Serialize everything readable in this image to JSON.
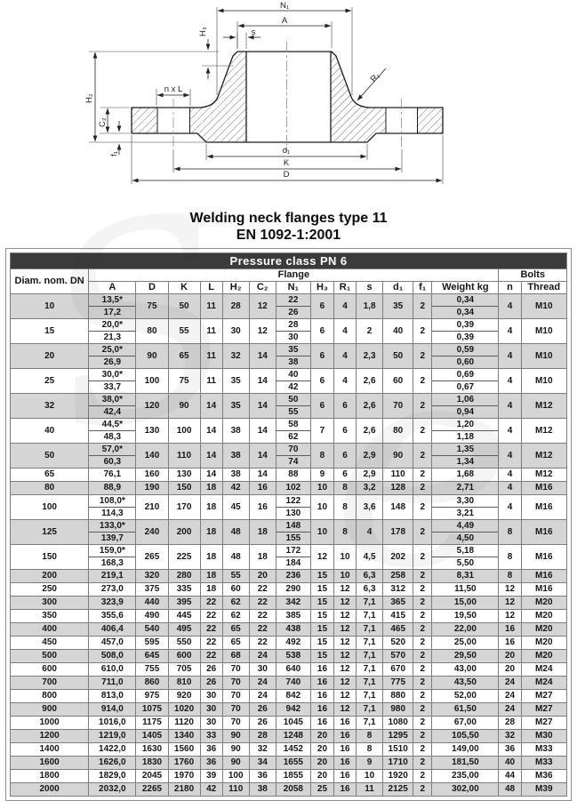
{
  "drawing": {
    "labels": {
      "n1": "N₁",
      "a": "A",
      "h3": "H₃",
      "s": "s",
      "nxl": "n x L",
      "h2": "H₂",
      "c2": "C₂",
      "f1": "f₁",
      "d1": "d₁",
      "k": "K",
      "d": "D",
      "r1": "R₁"
    }
  },
  "title": {
    "line1": "Welding neck flanges type 11",
    "line2": "EN 1092-1:2001"
  },
  "table": {
    "pressure_class": "Pressure class PN 6",
    "group_headers": {
      "dn": "Diam. nom. DN",
      "flange": "Flange",
      "bolts": "Bolts"
    },
    "columns": [
      "A",
      "D",
      "K",
      "L",
      "H₂",
      "C₂",
      "N₁",
      "H₃",
      "R₁",
      "s",
      "d₁",
      "f₁",
      "Weight kg",
      "n",
      "Thread"
    ],
    "rows": [
      {
        "dn": "10",
        "A": [
          "13,5*",
          "17,2"
        ],
        "D": "75",
        "K": "50",
        "L": "11",
        "H2": "28",
        "C2": "12",
        "N1": [
          "22",
          "26"
        ],
        "H3": "6",
        "R1": "4",
        "s": "1,8",
        "d1": "35",
        "f1": "2",
        "weight": [
          "0,34",
          "0,34"
        ],
        "n": "4",
        "thread": "M10"
      },
      {
        "dn": "15",
        "A": [
          "20,0*",
          "21,3"
        ],
        "D": "80",
        "K": "55",
        "L": "11",
        "H2": "30",
        "C2": "12",
        "N1": [
          "28",
          "30"
        ],
        "H3": "6",
        "R1": "4",
        "s": "2",
        "d1": "40",
        "f1": "2",
        "weight": [
          "0,39",
          "0,39"
        ],
        "n": "4",
        "thread": "M10"
      },
      {
        "dn": "20",
        "A": [
          "25,0*",
          "26,9"
        ],
        "D": "90",
        "K": "65",
        "L": "11",
        "H2": "32",
        "C2": "14",
        "N1": [
          "35",
          "38"
        ],
        "H3": "6",
        "R1": "4",
        "s": "2,3",
        "d1": "50",
        "f1": "2",
        "weight": [
          "0,59",
          "0,60"
        ],
        "n": "4",
        "thread": "M10"
      },
      {
        "dn": "25",
        "A": [
          "30,0*",
          "33,7"
        ],
        "D": "100",
        "K": "75",
        "L": "11",
        "H2": "35",
        "C2": "14",
        "N1": [
          "40",
          "42"
        ],
        "H3": "6",
        "R1": "4",
        "s": "2,6",
        "d1": "60",
        "f1": "2",
        "weight": [
          "0,69",
          "0,67"
        ],
        "n": "4",
        "thread": "M10"
      },
      {
        "dn": "32",
        "A": [
          "38,0*",
          "42,4"
        ],
        "D": "120",
        "K": "90",
        "L": "14",
        "H2": "35",
        "C2": "14",
        "N1": [
          "50",
          "55"
        ],
        "H3": "6",
        "R1": "6",
        "s": "2,6",
        "d1": "70",
        "f1": "2",
        "weight": [
          "1,06",
          "0,94"
        ],
        "n": "4",
        "thread": "M12"
      },
      {
        "dn": "40",
        "A": [
          "44,5*",
          "48,3"
        ],
        "D": "130",
        "K": "100",
        "L": "14",
        "H2": "38",
        "C2": "14",
        "N1": [
          "58",
          "62"
        ],
        "H3": "7",
        "R1": "6",
        "s": "2,6",
        "d1": "80",
        "f1": "2",
        "weight": [
          "1,20",
          "1,18"
        ],
        "n": "4",
        "thread": "M12"
      },
      {
        "dn": "50",
        "A": [
          "57,0*",
          "60,3"
        ],
        "D": "140",
        "K": "110",
        "L": "14",
        "H2": "38",
        "C2": "14",
        "N1": [
          "70",
          "74"
        ],
        "H3": "8",
        "R1": "6",
        "s": "2,9",
        "d1": "90",
        "f1": "2",
        "weight": [
          "1,35",
          "1,34"
        ],
        "n": "4",
        "thread": "M12"
      },
      {
        "dn": "65",
        "A": "76,1",
        "D": "160",
        "K": "130",
        "L": "14",
        "H2": "38",
        "C2": "14",
        "N1": "88",
        "H3": "9",
        "R1": "6",
        "s": "2,9",
        "d1": "110",
        "f1": "2",
        "weight": "1,68",
        "n": "4",
        "thread": "M12"
      },
      {
        "dn": "80",
        "A": "88,9",
        "D": "190",
        "K": "150",
        "L": "18",
        "H2": "42",
        "C2": "16",
        "N1": "102",
        "H3": "10",
        "R1": "8",
        "s": "3,2",
        "d1": "128",
        "f1": "2",
        "weight": "2,71",
        "n": "4",
        "thread": "M16"
      },
      {
        "dn": "100",
        "A": [
          "108,0*",
          "114,3"
        ],
        "D": "210",
        "K": "170",
        "L": "18",
        "H2": "45",
        "C2": "16",
        "N1": [
          "122",
          "130"
        ],
        "H3": "10",
        "R1": "8",
        "s": "3,6",
        "d1": "148",
        "f1": "2",
        "weight": [
          "3,30",
          "3,21"
        ],
        "n": "4",
        "thread": "M16"
      },
      {
        "dn": "125",
        "A": [
          "133,0*",
          "139,7"
        ],
        "D": "240",
        "K": "200",
        "L": "18",
        "H2": "48",
        "C2": "18",
        "N1": [
          "148",
          "155"
        ],
        "H3": "10",
        "R1": "8",
        "s": "4",
        "d1": "178",
        "f1": "2",
        "weight": [
          "4,49",
          "4,50"
        ],
        "n": "8",
        "thread": "M16"
      },
      {
        "dn": "150",
        "A": [
          "159,0*",
          "168,3"
        ],
        "D": "265",
        "K": "225",
        "L": "18",
        "H2": "48",
        "C2": "18",
        "N1": [
          "172",
          "184"
        ],
        "H3": "12",
        "R1": "10",
        "s": "4,5",
        "d1": "202",
        "f1": "2",
        "weight": [
          "5,18",
          "5,50"
        ],
        "n": "8",
        "thread": "M16"
      },
      {
        "dn": "200",
        "A": "219,1",
        "D": "320",
        "K": "280",
        "L": "18",
        "H2": "55",
        "C2": "20",
        "N1": "236",
        "H3": "15",
        "R1": "10",
        "s": "6,3",
        "d1": "258",
        "f1": "2",
        "weight": "8,31",
        "n": "8",
        "thread": "M16"
      },
      {
        "dn": "250",
        "A": "273,0",
        "D": "375",
        "K": "335",
        "L": "18",
        "H2": "60",
        "C2": "22",
        "N1": "290",
        "H3": "15",
        "R1": "12",
        "s": "6,3",
        "d1": "312",
        "f1": "2",
        "weight": "11,50",
        "n": "12",
        "thread": "M16"
      },
      {
        "dn": "300",
        "A": "323,9",
        "D": "440",
        "K": "395",
        "L": "22",
        "H2": "62",
        "C2": "22",
        "N1": "342",
        "H3": "15",
        "R1": "12",
        "s": "7,1",
        "d1": "365",
        "f1": "2",
        "weight": "15,00",
        "n": "12",
        "thread": "M20"
      },
      {
        "dn": "350",
        "A": "355,6",
        "D": "490",
        "K": "445",
        "L": "22",
        "H2": "62",
        "C2": "22",
        "N1": "385",
        "H3": "15",
        "R1": "12",
        "s": "7,1",
        "d1": "415",
        "f1": "2",
        "weight": "19,50",
        "n": "12",
        "thread": "M20"
      },
      {
        "dn": "400",
        "A": "406,4",
        "D": "540",
        "K": "495",
        "L": "22",
        "H2": "65",
        "C2": "22",
        "N1": "438",
        "H3": "15",
        "R1": "12",
        "s": "7,1",
        "d1": "465",
        "f1": "2",
        "weight": "22,00",
        "n": "16",
        "thread": "M20"
      },
      {
        "dn": "450",
        "A": "457,0",
        "D": "595",
        "K": "550",
        "L": "22",
        "H2": "65",
        "C2": "22",
        "N1": "492",
        "H3": "15",
        "R1": "12",
        "s": "7,1",
        "d1": "520",
        "f1": "2",
        "weight": "25,00",
        "n": "16",
        "thread": "M20"
      },
      {
        "dn": "500",
        "A": "508,0",
        "D": "645",
        "K": "600",
        "L": "22",
        "H2": "68",
        "C2": "24",
        "N1": "538",
        "H3": "15",
        "R1": "12",
        "s": "7,1",
        "d1": "570",
        "f1": "2",
        "weight": "29,50",
        "n": "20",
        "thread": "M20"
      },
      {
        "dn": "600",
        "A": "610,0",
        "D": "755",
        "K": "705",
        "L": "26",
        "H2": "70",
        "C2": "30",
        "N1": "640",
        "H3": "16",
        "R1": "12",
        "s": "7,1",
        "d1": "670",
        "f1": "2",
        "weight": "43,00",
        "n": "20",
        "thread": "M24"
      },
      {
        "dn": "700",
        "A": "711,0",
        "D": "860",
        "K": "810",
        "L": "26",
        "H2": "70",
        "C2": "24",
        "N1": "740",
        "H3": "16",
        "R1": "12",
        "s": "7,1",
        "d1": "775",
        "f1": "2",
        "weight": "43,50",
        "n": "24",
        "thread": "M24"
      },
      {
        "dn": "800",
        "A": "813,0",
        "D": "975",
        "K": "920",
        "L": "30",
        "H2": "70",
        "C2": "24",
        "N1": "842",
        "H3": "16",
        "R1": "12",
        "s": "7,1",
        "d1": "880",
        "f1": "2",
        "weight": "52,00",
        "n": "24",
        "thread": "M27"
      },
      {
        "dn": "900",
        "A": "914,0",
        "D": "1075",
        "K": "1020",
        "L": "30",
        "H2": "70",
        "C2": "26",
        "N1": "942",
        "H3": "16",
        "R1": "12",
        "s": "7,1",
        "d1": "980",
        "f1": "2",
        "weight": "61,50",
        "n": "24",
        "thread": "M27"
      },
      {
        "dn": "1000",
        "A": "1016,0",
        "D": "1175",
        "K": "1120",
        "L": "30",
        "H2": "70",
        "C2": "26",
        "N1": "1045",
        "H3": "16",
        "R1": "16",
        "s": "7,1",
        "d1": "1080",
        "f1": "2",
        "weight": "67,00",
        "n": "28",
        "thread": "M27"
      },
      {
        "dn": "1200",
        "A": "1219,0",
        "D": "1405",
        "K": "1340",
        "L": "33",
        "H2": "90",
        "C2": "28",
        "N1": "1248",
        "H3": "20",
        "R1": "16",
        "s": "8",
        "d1": "1295",
        "f1": "2",
        "weight": "105,50",
        "n": "32",
        "thread": "M30"
      },
      {
        "dn": "1400",
        "A": "1422,0",
        "D": "1630",
        "K": "1560",
        "L": "36",
        "H2": "90",
        "C2": "32",
        "N1": "1452",
        "H3": "20",
        "R1": "16",
        "s": "8",
        "d1": "1510",
        "f1": "2",
        "weight": "149,00",
        "n": "36",
        "thread": "M33"
      },
      {
        "dn": "1600",
        "A": "1626,0",
        "D": "1830",
        "K": "1760",
        "L": "36",
        "H2": "90",
        "C2": "34",
        "N1": "1655",
        "H3": "20",
        "R1": "16",
        "s": "9",
        "d1": "1710",
        "f1": "2",
        "weight": "181,50",
        "n": "40",
        "thread": "M33"
      },
      {
        "dn": "1800",
        "A": "1829,0",
        "D": "2045",
        "K": "1970",
        "L": "39",
        "H2": "100",
        "C2": "36",
        "N1": "1855",
        "H3": "20",
        "R1": "16",
        "s": "10",
        "d1": "1920",
        "f1": "2",
        "weight": "235,00",
        "n": "44",
        "thread": "M36"
      },
      {
        "dn": "2000",
        "A": "2032,0",
        "D": "2265",
        "K": "2180",
        "L": "42",
        "H2": "110",
        "C2": "38",
        "N1": "2058",
        "H3": "25",
        "R1": "16",
        "s": "11",
        "d1": "2125",
        "f1": "2",
        "weight": "302,00",
        "n": "48",
        "thread": "M39"
      }
    ]
  },
  "colors": {
    "header_bar_bg": "#3b3b3b",
    "header_bar_text": "#ffffff",
    "row_shaded": "#d5d5d5",
    "grid_border": "#7d7d7d"
  }
}
